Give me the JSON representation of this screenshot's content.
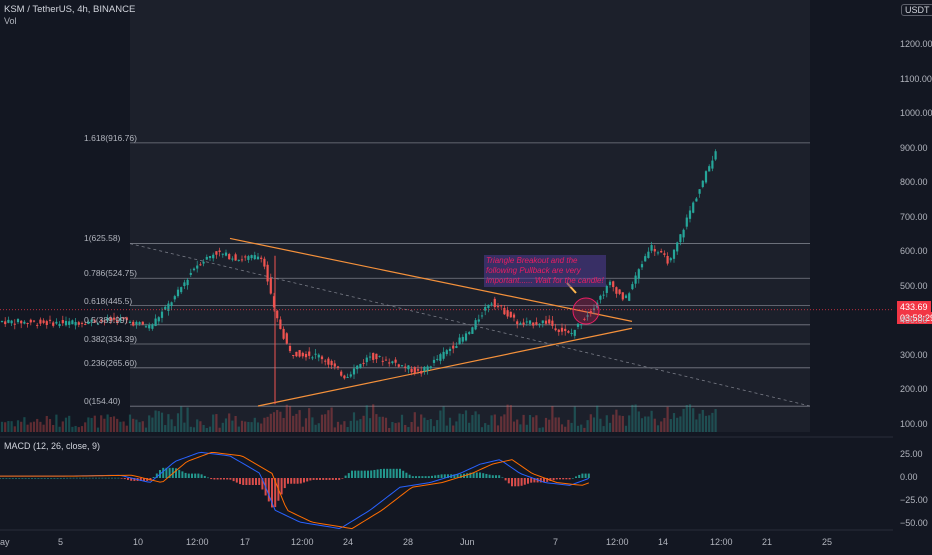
{
  "header": {
    "symbol": "KSM / TetherUS, 4h, BINANCE",
    "sub": "Vol"
  },
  "currency": "USDT",
  "price": {
    "value": "433.69",
    "timer": "03:58:29"
  },
  "y_ticks": [
    "1200.00",
    "1100.00",
    "1000.00",
    "900.00",
    "800.00",
    "700.00",
    "600.00",
    "500.00",
    "400.00",
    "300.00",
    "200.00",
    "100.00"
  ],
  "macd_ticks": [
    "25.00",
    "0.00",
    "−25.00",
    "−50.00"
  ],
  "macd_label": "MACD (12, 26, close, 9)",
  "x_ticks": [
    "ay",
    "5",
    "10",
    "12:00",
    "17",
    "12:00",
    "24",
    "28",
    "Jun",
    "7",
    "12:00",
    "14",
    "12:00",
    "21",
    "25"
  ],
  "fib": [
    "1.618(916.76)",
    "1(625.58)",
    "0.786(524.75)",
    "0.618(445.5)",
    "0.5(389.99)",
    "0.382(334.39)",
    "0.236(265.60)",
    "0(154.40)"
  ],
  "note": "Triangle Breakout and the following Pullback are very important...... Wait for the candle!",
  "colors": {
    "up": "#26a69a",
    "down": "#ef5350",
    "trend": "#f5913b",
    "fibline": "#787b86",
    "bg": "#131722",
    "panel": "#1e222d"
  },
  "chart_data": {
    "type": "candlestick",
    "title": "KSM / TetherUS, 4h, BINANCE",
    "ylim": [
      100,
      1260
    ],
    "fib_levels": [
      {
        "ratio": 1.618,
        "price": 916.76
      },
      {
        "ratio": 1,
        "price": 625.58
      },
      {
        "ratio": 0.786,
        "price": 524.75
      },
      {
        "ratio": 0.618,
        "price": 445.5
      },
      {
        "ratio": 0.5,
        "price": 389.99
      },
      {
        "ratio": 0.382,
        "price": 334.39
      },
      {
        "ratio": 0.236,
        "price": 265.6
      },
      {
        "ratio": 0,
        "price": 154.4
      }
    ],
    "price_path": [
      [
        0,
        400
      ],
      [
        60,
        395
      ],
      [
        120,
        405
      ],
      [
        150,
        385
      ],
      [
        175,
        470
      ],
      [
        195,
        560
      ],
      [
        215,
        600
      ],
      [
        240,
        580
      ],
      [
        262,
        590
      ],
      [
        275,
        420
      ],
      [
        290,
        310
      ],
      [
        320,
        300
      ],
      [
        345,
        240
      ],
      [
        370,
        300
      ],
      [
        395,
        280
      ],
      [
        420,
        250
      ],
      [
        445,
        310
      ],
      [
        470,
        370
      ],
      [
        490,
        460
      ],
      [
        500,
        440
      ],
      [
        520,
        390
      ],
      [
        545,
        400
      ],
      [
        570,
        360
      ],
      [
        590,
        430
      ],
      [
        610,
        510
      ],
      [
        625,
        460
      ],
      [
        650,
        620
      ],
      [
        670,
        570
      ],
      [
        690,
        720
      ],
      [
        705,
        820
      ],
      [
        716,
        900
      ]
    ],
    "last_price": 433.69,
    "macd_range": [
      -60,
      35
    ],
    "macd_path": [
      [
        0,
        2
      ],
      [
        60,
        2
      ],
      [
        120,
        3
      ],
      [
        150,
        -5
      ],
      [
        175,
        18
      ],
      [
        200,
        28
      ],
      [
        230,
        24
      ],
      [
        260,
        5
      ],
      [
        275,
        -35
      ],
      [
        300,
        -48
      ],
      [
        340,
        -55
      ],
      [
        370,
        -35
      ],
      [
        400,
        -10
      ],
      [
        430,
        -5
      ],
      [
        460,
        5
      ],
      [
        480,
        15
      ],
      [
        500,
        20
      ],
      [
        520,
        5
      ],
      [
        545,
        -5
      ],
      [
        570,
        -8
      ],
      [
        590,
        0
      ]
    ]
  }
}
